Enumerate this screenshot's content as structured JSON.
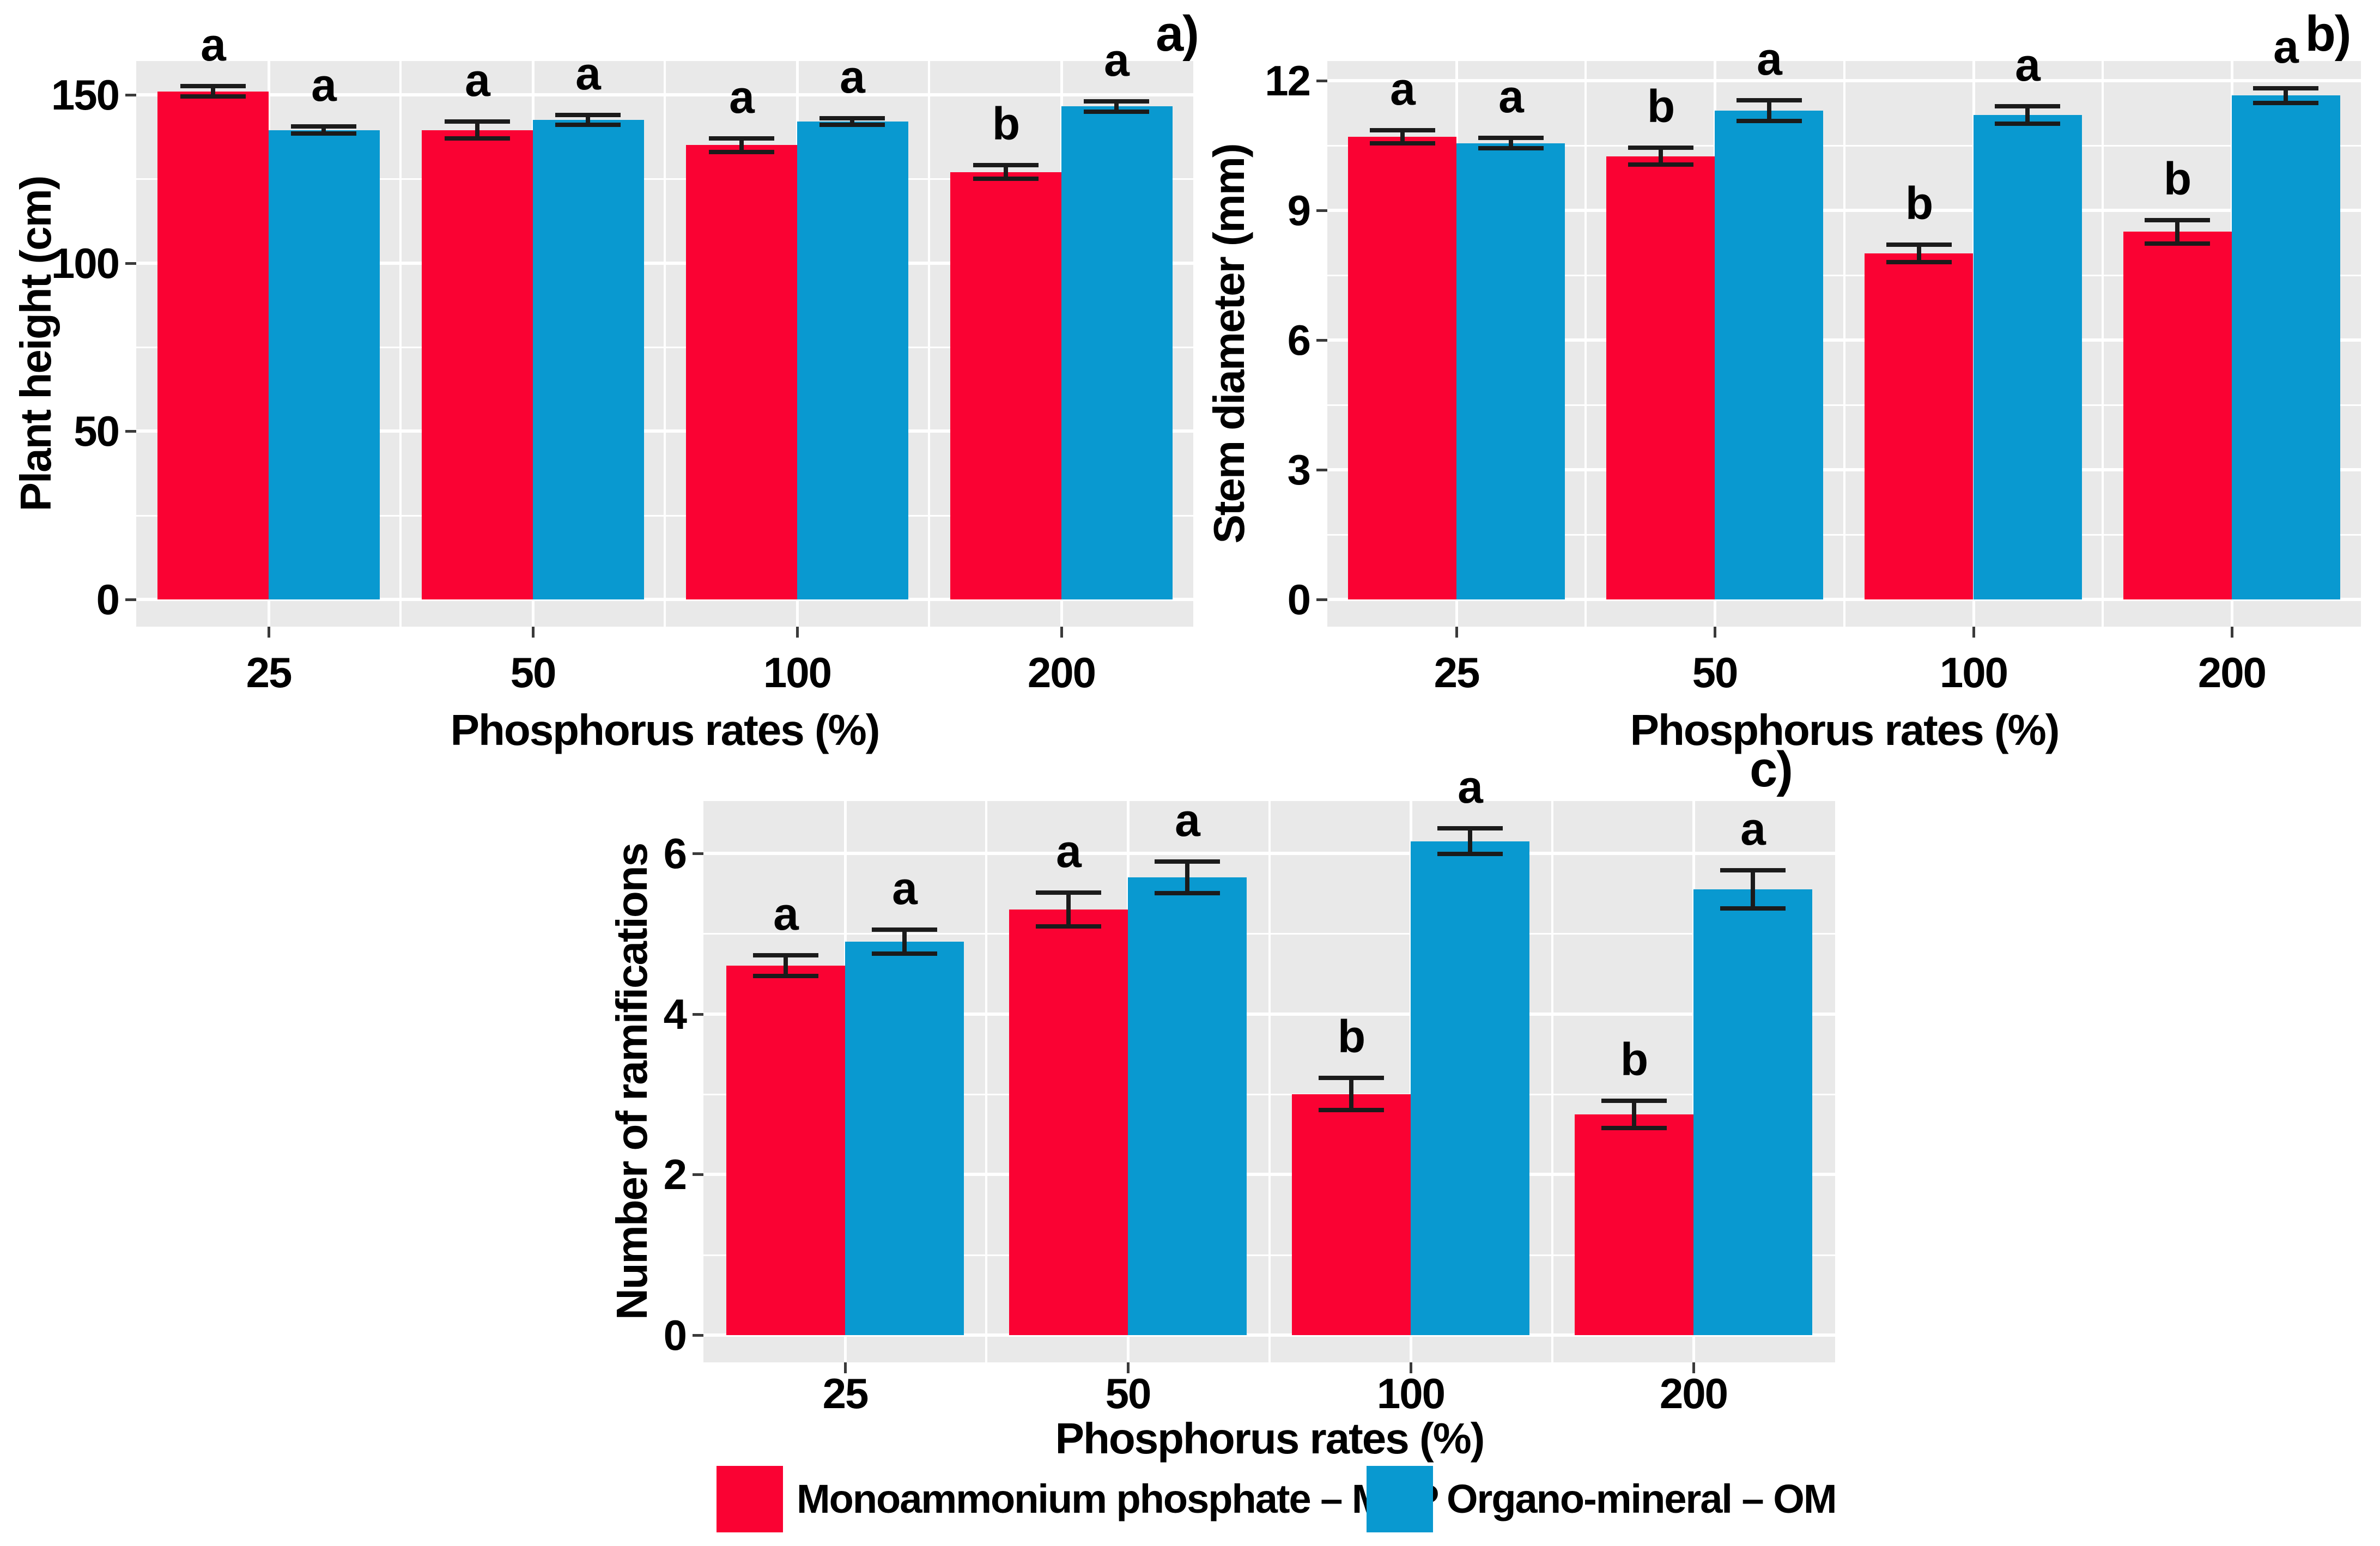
{
  "figure": {
    "description": "Three-panel bar figure comparing MAP and OM fertilizers across phosphorus rates",
    "background_color": "#ffffff"
  },
  "colors": {
    "map_red": "#FA0233",
    "om_blue": "#0999D0",
    "panel_background": "#E9E9E9",
    "gridline": "#ffffff",
    "error_bar": "#1b1b1b",
    "tick_mark": "#3a3a3a",
    "text": "#000000"
  },
  "legend": {
    "items": [
      {
        "label": "Monoammonium phosphate – MAP",
        "series_key": "map",
        "swatch_color": "#FA0233"
      },
      {
        "label": "Organo-mineral – OM",
        "series_key": "om",
        "swatch_color": "#0999D0"
      }
    ]
  },
  "chart_data": [
    {
      "id": "a",
      "panel_label": "a)",
      "type": "bar",
      "title": "",
      "xlabel": "Phosphorus rates (%)",
      "ylabel": "Plant height (cm)",
      "categories": [
        "25",
        "50",
        "100",
        "200"
      ],
      "yticks": [
        0,
        50,
        100,
        150
      ],
      "ylim": [
        0,
        160
      ],
      "grid": true,
      "legend_position": "shared-bottom",
      "series": [
        {
          "name": "Monoammonium phosphate – MAP",
          "key": "map",
          "values": [
            151,
            139.5,
            135,
            127
          ],
          "errors": [
            1.5,
            2.5,
            2,
            2
          ],
          "sig_letters": [
            "a",
            "a",
            "a",
            "b"
          ]
        },
        {
          "name": "Organo-mineral – OM",
          "key": "om",
          "values": [
            139.5,
            142.5,
            142,
            146.5
          ],
          "errors": [
            1,
            1.5,
            1,
            1.5
          ],
          "sig_letters": [
            "a",
            "a",
            "a",
            "a"
          ]
        }
      ]
    },
    {
      "id": "b",
      "panel_label": "b)",
      "type": "bar",
      "title": "",
      "xlabel": "Phosphorus rates (%)",
      "ylabel": "Stem diameter (mm)",
      "categories": [
        "25",
        "50",
        "100",
        "200"
      ],
      "yticks": [
        0,
        3,
        6,
        9,
        12
      ],
      "ylim": [
        0,
        12.45
      ],
      "grid": true,
      "legend_position": "shared-bottom",
      "series": [
        {
          "name": "Monoammonium phosphate – MAP",
          "key": "map",
          "values": [
            10.7,
            10.25,
            8,
            8.5
          ],
          "errors": [
            0.15,
            0.2,
            0.2,
            0.27
          ],
          "sig_letters": [
            "a",
            "b",
            "b",
            "b"
          ]
        },
        {
          "name": "Organo-mineral – OM",
          "key": "om",
          "values": [
            10.55,
            11.3,
            11.2,
            11.65
          ],
          "errors": [
            0.12,
            0.24,
            0.2,
            0.17
          ],
          "sig_letters": [
            "a",
            "a",
            "a",
            "a"
          ]
        }
      ]
    },
    {
      "id": "c",
      "panel_label": "c)",
      "type": "bar",
      "title": "",
      "xlabel": "Phosphorus rates (%)",
      "ylabel": "Number of ramifications",
      "categories": [
        "25",
        "50",
        "100",
        "200"
      ],
      "yticks": [
        0,
        2,
        4,
        6
      ],
      "ylim": [
        0,
        6.65
      ],
      "grid": true,
      "legend_position": "shared-bottom",
      "series": [
        {
          "name": "Monoammonium phosphate – MAP",
          "key": "map",
          "values": [
            4.6,
            5.3,
            3,
            2.75
          ],
          "errors": [
            0.13,
            0.21,
            0.2,
            0.17
          ],
          "sig_letters": [
            "a",
            "a",
            "b",
            "b"
          ]
        },
        {
          "name": "Organo-mineral – OM",
          "key": "om",
          "values": [
            4.9,
            5.7,
            6.15,
            5.55
          ],
          "errors": [
            0.15,
            0.2,
            0.16,
            0.24
          ],
          "sig_letters": [
            "a",
            "a",
            "a",
            "a"
          ]
        }
      ]
    }
  ]
}
